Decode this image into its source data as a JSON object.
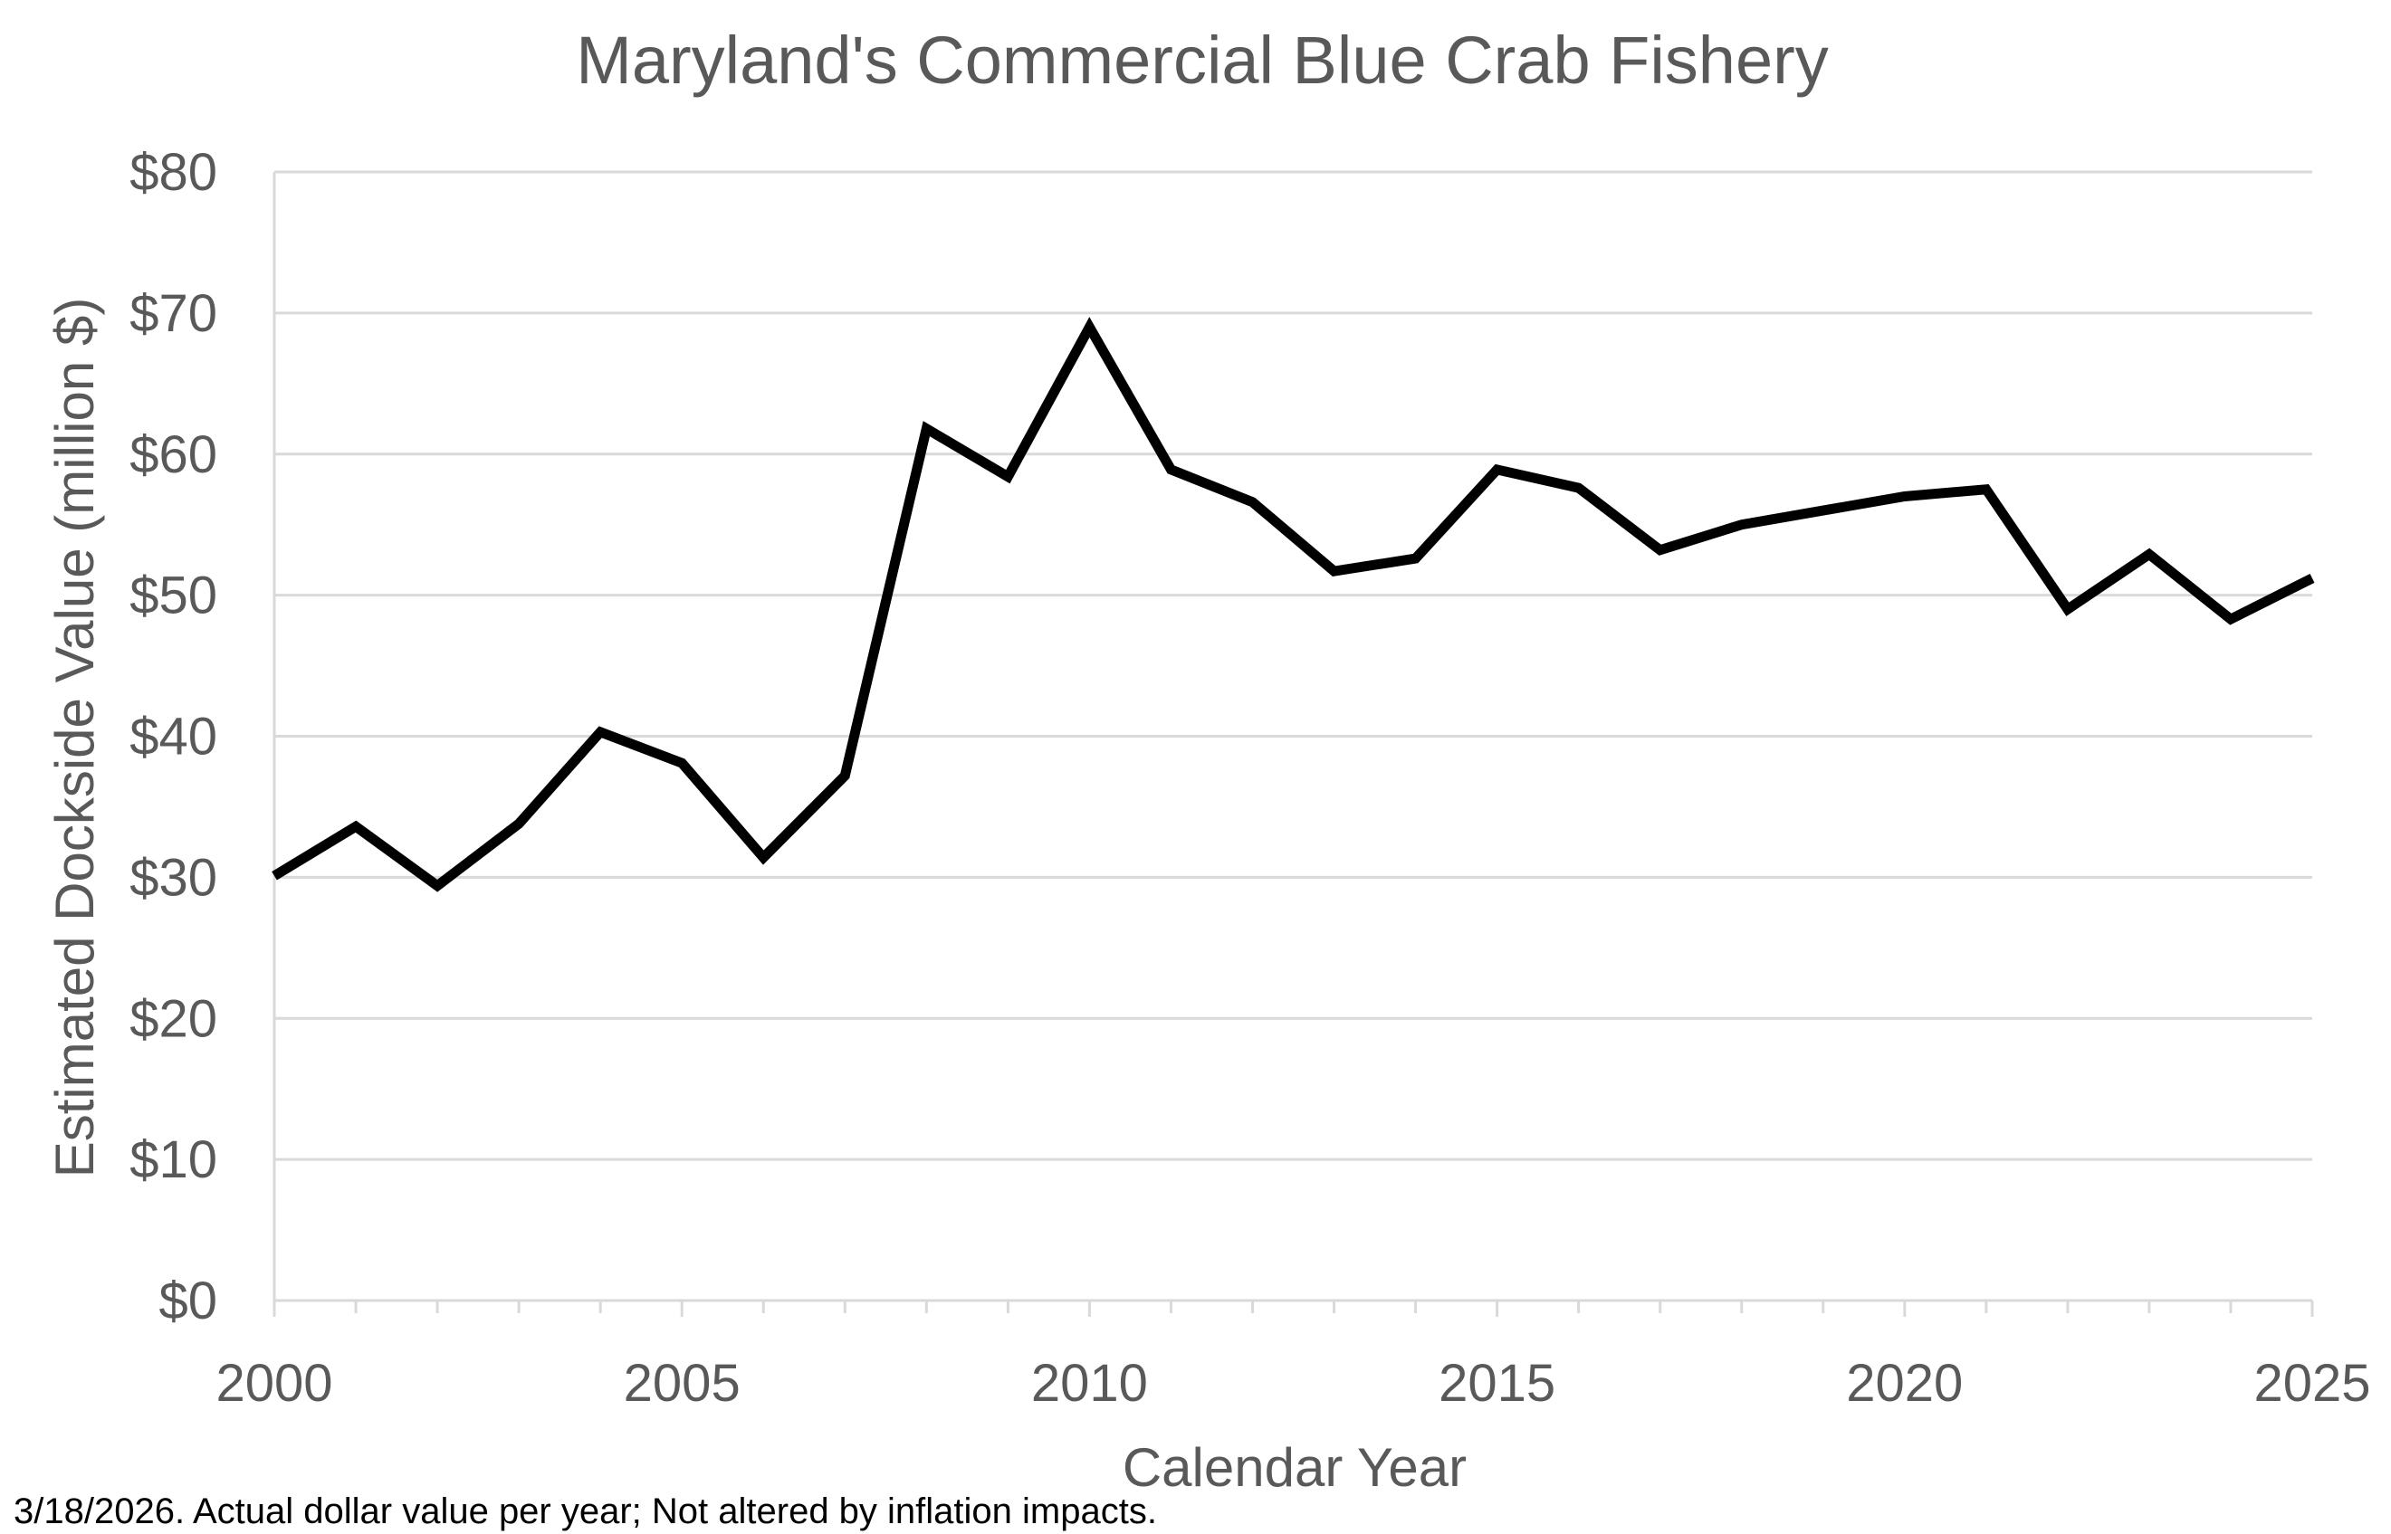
{
  "chart_data": {
    "type": "line",
    "title": "Maryland's Commercial Blue Crab Fishery",
    "xlabel": "Calendar Year",
    "ylabel": "Estimated Dockside Value (million $)",
    "xlim": [
      2000,
      2025
    ],
    "ylim": [
      0,
      80
    ],
    "x_ticks": [
      2000,
      2005,
      2010,
      2015,
      2020,
      2025
    ],
    "y_ticks": [
      0,
      10,
      20,
      30,
      40,
      50,
      60,
      70,
      80
    ],
    "y_tick_labels": [
      "$0",
      "$10",
      "$20",
      "$30",
      "$40",
      "$50",
      "$60",
      "$70",
      "$80"
    ],
    "grid": true,
    "line_color": "#000000",
    "grid_color": "#d9d9d9",
    "text_color": "#595959",
    "series": [
      {
        "x": [
          2000,
          2001,
          2002,
          2003,
          2004,
          2005,
          2006,
          2007,
          2008,
          2009,
          2010,
          2011,
          2012,
          2013,
          2014,
          2015,
          2016,
          2017,
          2018,
          2019,
          2020,
          2021,
          2022,
          2023,
          2024,
          2025
        ],
        "values": [
          30.1,
          33.6,
          29.4,
          33.8,
          40.3,
          38.1,
          31.4,
          37.2,
          61.8,
          58.4,
          69.0,
          58.9,
          56.6,
          51.7,
          52.6,
          58.9,
          57.6,
          53.2,
          55.0,
          56.0,
          57.0,
          57.5,
          49.0,
          52.9,
          48.3,
          51.2
        ]
      }
    ]
  },
  "footnote": "3/18/2026. Actual dollar value per year; Not altered by inflation impacts."
}
